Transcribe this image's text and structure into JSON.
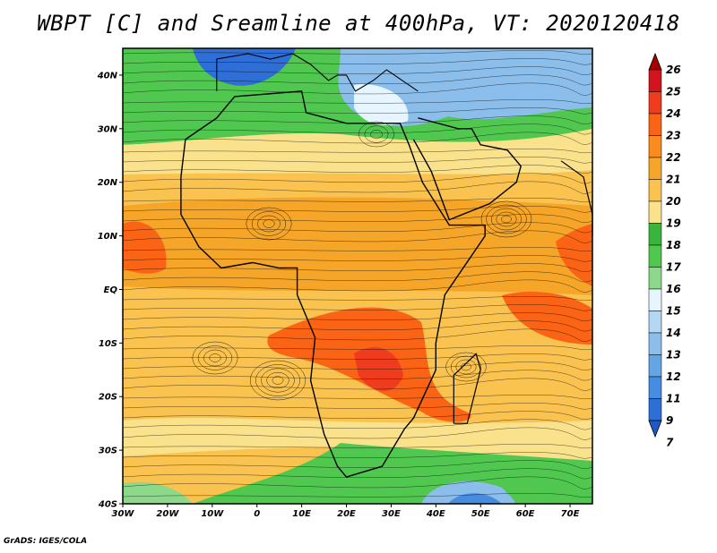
{
  "title": "WBPT [C] and Sreamline at 400hPa, VT: 2020120418",
  "footer": "GrADS: IGES/COLA",
  "map": {
    "lon_range": [
      -30,
      75
    ],
    "lat_range": [
      -40,
      45
    ],
    "lat_ticks": [
      {
        "value": 40,
        "label": "40N"
      },
      {
        "value": 30,
        "label": "30N"
      },
      {
        "value": 20,
        "label": "20N"
      },
      {
        "value": 10,
        "label": "10N"
      },
      {
        "value": 0,
        "label": "EQ"
      },
      {
        "value": -10,
        "label": "10S"
      },
      {
        "value": -20,
        "label": "20S"
      },
      {
        "value": -30,
        "label": "30S"
      },
      {
        "value": -40,
        "label": "40S"
      }
    ],
    "lon_ticks": [
      {
        "value": -30,
        "label": "30W"
      },
      {
        "value": -20,
        "label": "20W"
      },
      {
        "value": -10,
        "label": "10W"
      },
      {
        "value": 0,
        "label": "0"
      },
      {
        "value": 10,
        "label": "10E"
      },
      {
        "value": 20,
        "label": "20E"
      },
      {
        "value": 30,
        "label": "30E"
      },
      {
        "value": 40,
        "label": "40E"
      },
      {
        "value": 50,
        "label": "50E"
      },
      {
        "value": 60,
        "label": "60E"
      },
      {
        "value": 70,
        "label": "70E"
      }
    ]
  },
  "colorbar": {
    "labels": [
      "26",
      "25",
      "24",
      "23",
      "22",
      "21",
      "20",
      "19",
      "18",
      "17",
      "16",
      "15",
      "14",
      "13",
      "12",
      "11",
      "9",
      "7"
    ],
    "colors": [
      "#a50000",
      "#d2141e",
      "#f03c1e",
      "#fa6414",
      "#fa8c1e",
      "#f5a528",
      "#fac350",
      "#fae18c",
      "#39b53e",
      "#50c850",
      "#8cd98c",
      "#e6f5ff",
      "#b4d7f5",
      "#8cbeeb",
      "#64a5e6",
      "#468ce1",
      "#2e6ed7",
      "#1e5ac8"
    ]
  }
}
